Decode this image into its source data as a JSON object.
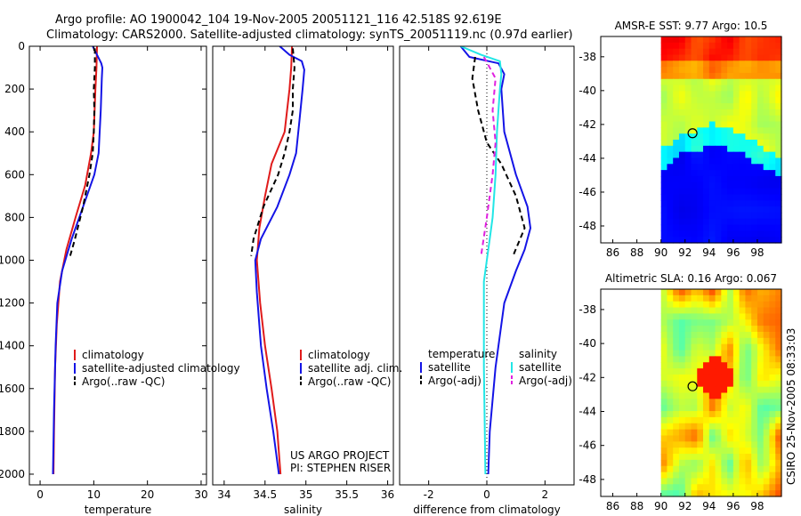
{
  "header": {
    "line1": "Argo profile: AO 1900042_104 19-Nov-2005 20051121_116 42.518S 92.619E",
    "line2": "Climatology: CARS2000. Satellite-adjusted climatology: synTS_20051119.nc (0.97d earlier)"
  },
  "colors": {
    "red": "#e01b1b",
    "blue": "#1414e6",
    "black": "#000000",
    "cyan": "#22e6e6",
    "magenta": "#e020e0"
  },
  "chart_data": [
    {
      "type": "line",
      "id": "temperature",
      "xlabel": "temperature",
      "ylabel": "",
      "xlim": [
        -2,
        31
      ],
      "ylim": [
        2050,
        0
      ],
      "xticks": [
        0,
        10,
        20,
        30
      ],
      "xtick_labels": [
        "0",
        "10",
        "20",
        "30"
      ],
      "yticks": [
        0,
        200,
        400,
        600,
        800,
        1000,
        1200,
        1400,
        1600,
        1800,
        2000
      ],
      "ytick_labels": [
        "0",
        "200",
        "400",
        "600",
        "800",
        "1000",
        "1200",
        "1400",
        "1600",
        "1800",
        "2000"
      ],
      "legend": [
        "climatology",
        "satellite-adjusted climatology",
        "Argo(..raw -QC)"
      ],
      "series": [
        {
          "name": "climatology",
          "color": "red",
          "dash": "",
          "x": [
            10.6,
            10.5,
            10.3,
            10.0,
            9.5,
            8.4,
            6.6,
            4.9,
            3.7,
            3.1,
            2.8,
            2.6,
            2.5
          ],
          "y": [
            0,
            100,
            200,
            400,
            500,
            650,
            800,
            950,
            1100,
            1300,
            1500,
            1800,
            2000
          ]
        },
        {
          "name": "satellite-adjusted climatology",
          "color": "blue",
          "dash": "",
          "x": [
            9.8,
            10.6,
            11.4,
            11.6,
            11.5,
            11.3,
            10.9,
            10.1,
            8.0,
            5.9,
            4.1,
            3.2,
            2.9,
            2.6,
            2.4
          ],
          "y": [
            0,
            40,
            80,
            100,
            150,
            300,
            500,
            600,
            750,
            900,
            1050,
            1200,
            1400,
            1700,
            2000
          ]
        },
        {
          "name": "Argo(..raw -QC)",
          "color": "black",
          "dash": "6,4",
          "x": [
            10.2,
            10.2,
            10.0,
            10.1,
            10.0,
            9.8,
            9.2,
            8.0,
            6.5,
            5.6
          ],
          "y": [
            10,
            100,
            200,
            300,
            400,
            500,
            600,
            750,
            900,
            980
          ]
        }
      ]
    },
    {
      "type": "line",
      "id": "salinity",
      "xlabel": "salinity",
      "xlim": [
        33.86,
        36.07
      ],
      "ylim": [
        2050,
        0
      ],
      "xticks": [
        34,
        34.5,
        35,
        35.5,
        36
      ],
      "xtick_labels": [
        "34",
        "34.5",
        "35",
        "35.5",
        "36"
      ],
      "legend": [
        "climatology",
        "satellite adj. clim.",
        "Argo(..raw -QC)"
      ],
      "annotation": [
        "US ARGO PROJECT",
        "PI: STEPHEN RISER"
      ],
      "series": [
        {
          "name": "climatology",
          "color": "red",
          "dash": "",
          "x": [
            34.83,
            34.82,
            34.8,
            34.74,
            34.58,
            34.5,
            34.43,
            34.4,
            34.44,
            34.5,
            34.58,
            34.65,
            34.69
          ],
          "y": [
            0,
            100,
            200,
            400,
            550,
            700,
            850,
            1000,
            1200,
            1400,
            1600,
            1800,
            2000
          ]
        },
        {
          "name": "satellite adj. clim.",
          "color": "blue",
          "dash": "",
          "x": [
            34.68,
            34.8,
            34.95,
            34.98,
            34.96,
            34.92,
            34.88,
            34.8,
            34.65,
            34.45,
            34.38,
            34.4,
            34.45,
            34.52,
            34.6,
            34.67
          ],
          "y": [
            0,
            40,
            70,
            110,
            200,
            350,
            500,
            600,
            750,
            900,
            1000,
            1150,
            1400,
            1600,
            1800,
            2000
          ]
        },
        {
          "name": "Argo(..raw -QC)",
          "color": "black",
          "dash": "6,4",
          "x": [
            34.84,
            34.86,
            34.84,
            34.84,
            34.8,
            34.74,
            34.66,
            34.48,
            34.36,
            34.33
          ],
          "y": [
            10,
            100,
            200,
            300,
            400,
            500,
            600,
            750,
            900,
            980
          ]
        }
      ]
    },
    {
      "type": "line",
      "id": "difference",
      "xlabel": "difference from climatology",
      "xlim": [
        -3.0,
        3.0
      ],
      "ylim": [
        2050,
        0
      ],
      "xticks": [
        -2,
        0,
        2
      ],
      "xtick_labels": [
        "-2",
        "0",
        "2"
      ],
      "legend_headers": [
        "temperature",
        "salinity"
      ],
      "legend": [
        "satellite",
        "Argo(-adj)",
        "satellite",
        "Argo(-adj)"
      ],
      "series": [
        {
          "name": "temperature satellite",
          "color": "blue",
          "dash": "",
          "x": [
            -0.9,
            -0.6,
            0.4,
            0.6,
            0.5,
            0.6,
            1.0,
            1.4,
            1.5,
            1.3,
            1.0,
            0.6,
            0.3,
            0.1,
            0.05
          ],
          "y": [
            0,
            50,
            80,
            130,
            200,
            400,
            600,
            750,
            850,
            950,
            1050,
            1200,
            1500,
            1800,
            2000
          ]
        },
        {
          "name": "temperature Argo(-adj)",
          "color": "black",
          "dash": "6,4",
          "x": [
            -0.4,
            -0.5,
            -0.3,
            0.0,
            0.5,
            1.0,
            1.3,
            0.9
          ],
          "y": [
            50,
            150,
            300,
            450,
            550,
            700,
            850,
            980
          ]
        },
        {
          "name": "salinity satellite",
          "color": "cyan",
          "dash": "",
          "x": [
            -0.9,
            -0.2,
            0.45,
            0.5,
            0.45,
            0.35,
            0.3,
            0.2,
            0.1,
            -0.1,
            -0.1,
            -0.05
          ],
          "y": [
            0,
            40,
            70,
            130,
            200,
            400,
            600,
            800,
            900,
            1100,
            1500,
            2000
          ]
        },
        {
          "name": "salinity Argo(-adj)",
          "color": "magenta",
          "dash": "6,4",
          "x": [
            -0.1,
            0.3,
            0.2,
            0.3,
            0.2,
            0.0,
            -0.2
          ],
          "y": [
            50,
            150,
            300,
            450,
            600,
            800,
            980
          ]
        }
      ],
      "zero_line": true
    },
    {
      "type": "heatmap",
      "id": "sst-map",
      "title": "AMSR-E SST: 9.77 Argo: 10.5",
      "xlim": [
        85,
        100
      ],
      "ylim": [
        -49,
        -36.8
      ],
      "xticks": [
        86,
        88,
        90,
        92,
        94,
        96,
        98
      ],
      "xtick_labels": [
        "86",
        "88",
        "90",
        "92",
        "94",
        "96",
        "98"
      ],
      "yticks": [
        -38,
        -40,
        -42,
        -44,
        -46,
        -48
      ],
      "ytick_labels": [
        "-38",
        "-40",
        "-42",
        "-44",
        "-46",
        "-48"
      ],
      "data_xrange": [
        90,
        100
      ],
      "marker": {
        "lon": 92.619,
        "lat": -42.518
      }
    },
    {
      "type": "heatmap",
      "id": "sla-map",
      "title": "Altimetric SLA: 0.16 Argo: 0.067",
      "xlim": [
        85,
        100
      ],
      "ylim": [
        -49,
        -36.8
      ],
      "xticks": [
        86,
        88,
        90,
        92,
        94,
        96,
        98
      ],
      "xtick_labels": [
        "86",
        "88",
        "90",
        "92",
        "94",
        "96",
        "98"
      ],
      "yticks": [
        -38,
        -40,
        -42,
        -44,
        -46,
        -48
      ],
      "ytick_labels": [
        "-38",
        "-40",
        "-42",
        "-44",
        "-46",
        "-48"
      ],
      "data_xrange": [
        90,
        100
      ],
      "marker": {
        "lon": 92.619,
        "lat": -42.518
      }
    }
  ],
  "footer": {
    "vertical_label": "CSIRO 25-Nov-2005 08:33:03"
  }
}
